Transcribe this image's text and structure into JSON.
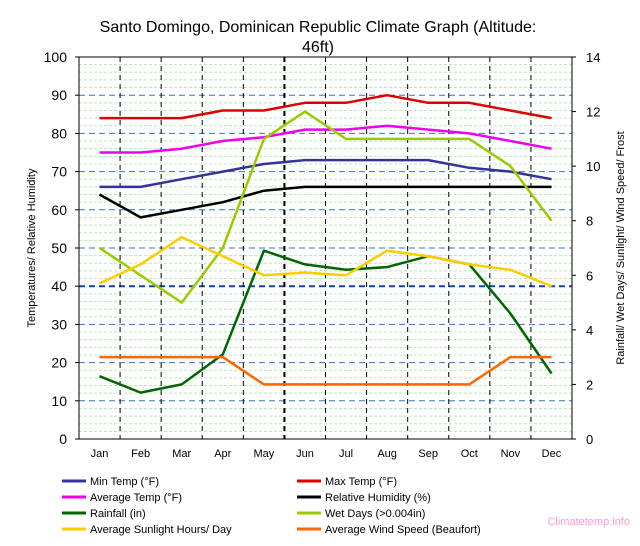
{
  "chart_data": {
    "type": "line",
    "title": "Santo Domingo, Dominican Republic Climate Graph (Altitude: 46ft)",
    "title_lines": [
      "Santo Domingo, Dominican Republic Climate Graph (Altitude:",
      "46ft)"
    ],
    "ylabel_left": "Temperatures/ Relative Humidity",
    "ylabel_right": "Rainfall/ Wet Days/ Sunlight/ Wind Speed/ Frost",
    "categories": [
      "Jan",
      "Feb",
      "Mar",
      "Apr",
      "May",
      "Jun",
      "Jul",
      "Aug",
      "Sep",
      "Oct",
      "Nov",
      "Dec"
    ],
    "ylim_left": [
      0,
      100
    ],
    "ylim_right": [
      0,
      14
    ],
    "yticks_left": [
      0,
      10,
      20,
      30,
      40,
      50,
      60,
      70,
      80,
      90,
      100
    ],
    "yticks_right": [
      0,
      2,
      4,
      6,
      8,
      10,
      12,
      14
    ],
    "grid": true,
    "legend_position": "bottom",
    "series": [
      {
        "name": "Min Temp (°F)",
        "axis": "left",
        "color": "#333399",
        "values": [
          66,
          66,
          68,
          70,
          72,
          73,
          73,
          73,
          73,
          71,
          70,
          68
        ]
      },
      {
        "name": "Max Temp (°F)",
        "axis": "left",
        "color": "#dd0000",
        "values": [
          84,
          84,
          84,
          86,
          86,
          88,
          88,
          90,
          88,
          88,
          86,
          84
        ]
      },
      {
        "name": "Average Temp (°F)",
        "axis": "left",
        "color": "#ee00ee",
        "values": [
          75,
          75,
          76,
          78,
          79,
          81,
          81,
          82,
          81,
          80,
          78,
          76
        ]
      },
      {
        "name": "Relative Humidity (%)",
        "axis": "left",
        "color": "#000000",
        "values": [
          64,
          58,
          60,
          62,
          65,
          66,
          66,
          66,
          66,
          66,
          66,
          66
        ]
      },
      {
        "name": "Rainfall (in)",
        "axis": "right",
        "color": "#006600",
        "values": [
          2.3,
          1.7,
          2.0,
          3.1,
          6.9,
          6.4,
          6.2,
          6.3,
          6.7,
          6.4,
          4.6,
          2.4
        ]
      },
      {
        "name": "Wet Days (>0.004in)",
        "axis": "right",
        "color": "#99cc00",
        "values": [
          7.0,
          6.0,
          5.0,
          7.0,
          11.0,
          12.0,
          11.0,
          11.0,
          11.0,
          11.0,
          10.0,
          8.0
        ]
      },
      {
        "name": "Average Sunlight Hours/ Day",
        "axis": "right",
        "color": "#ffcc00",
        "values": [
          5.7,
          6.4,
          7.4,
          6.7,
          6.0,
          6.1,
          6.0,
          6.9,
          6.7,
          6.4,
          6.2,
          5.6
        ]
      },
      {
        "name": "Average Wind Speed (Beaufort)",
        "axis": "right",
        "color": "#ff6600",
        "values": [
          3,
          3,
          3,
          3,
          2,
          2,
          2,
          2,
          2,
          2,
          3,
          3
        ]
      }
    ]
  },
  "watermark": "Climatetemp.info"
}
